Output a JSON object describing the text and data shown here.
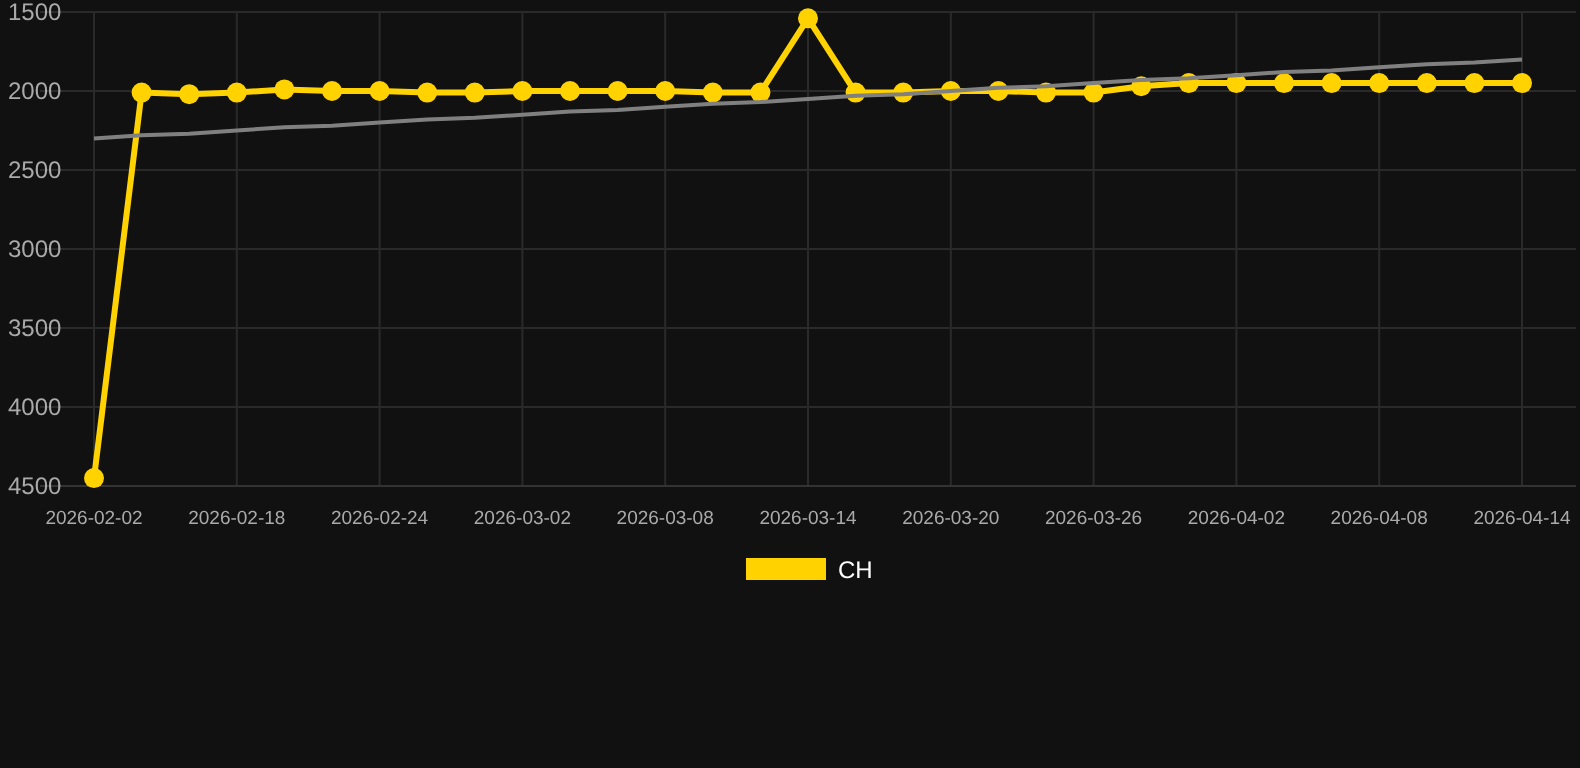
{
  "chart_data": {
    "type": "line",
    "categories": [
      "2026-02-02",
      null,
      null,
      "2026-02-18",
      null,
      null,
      "2026-02-24",
      null,
      null,
      "2026-03-02",
      null,
      null,
      "2026-03-08",
      null,
      null,
      "2026-03-14",
      null,
      null,
      "2026-03-20",
      null,
      null,
      "2026-03-26",
      null,
      null,
      "2026-04-02",
      null,
      null,
      "2026-04-08",
      null,
      null,
      "2026-04-14"
    ],
    "series": [
      {
        "name": "CH",
        "color": "#ffd200",
        "marker": "circle",
        "values": [
          4450,
          2010,
          2020,
          2010,
          1990,
          2000,
          2000,
          2010,
          2010,
          2000,
          2000,
          2000,
          2000,
          2010,
          2010,
          1540,
          2010,
          2010,
          2000,
          2000,
          2010,
          2010,
          1970,
          1950,
          1950,
          1950,
          1950,
          1950,
          1950,
          1950,
          1950
        ]
      },
      {
        "type": "line",
        "color": "#808080",
        "marker": "none",
        "values": [
          2300,
          2280,
          2270,
          2250,
          2230,
          2220,
          2200,
          2180,
          2170,
          2150,
          2130,
          2120,
          2100,
          2080,
          2070,
          2050,
          2030,
          2020,
          2000,
          1980,
          1970,
          1950,
          1930,
          1920,
          1900,
          1880,
          1870,
          1850,
          1830,
          1820,
          1800
        ]
      }
    ],
    "ylim": [
      4500,
      1500
    ],
    "yticks": [
      1500,
      2000,
      2500,
      3000,
      3500,
      4000,
      4500
    ],
    "grid": true,
    "legend": "bottom"
  }
}
